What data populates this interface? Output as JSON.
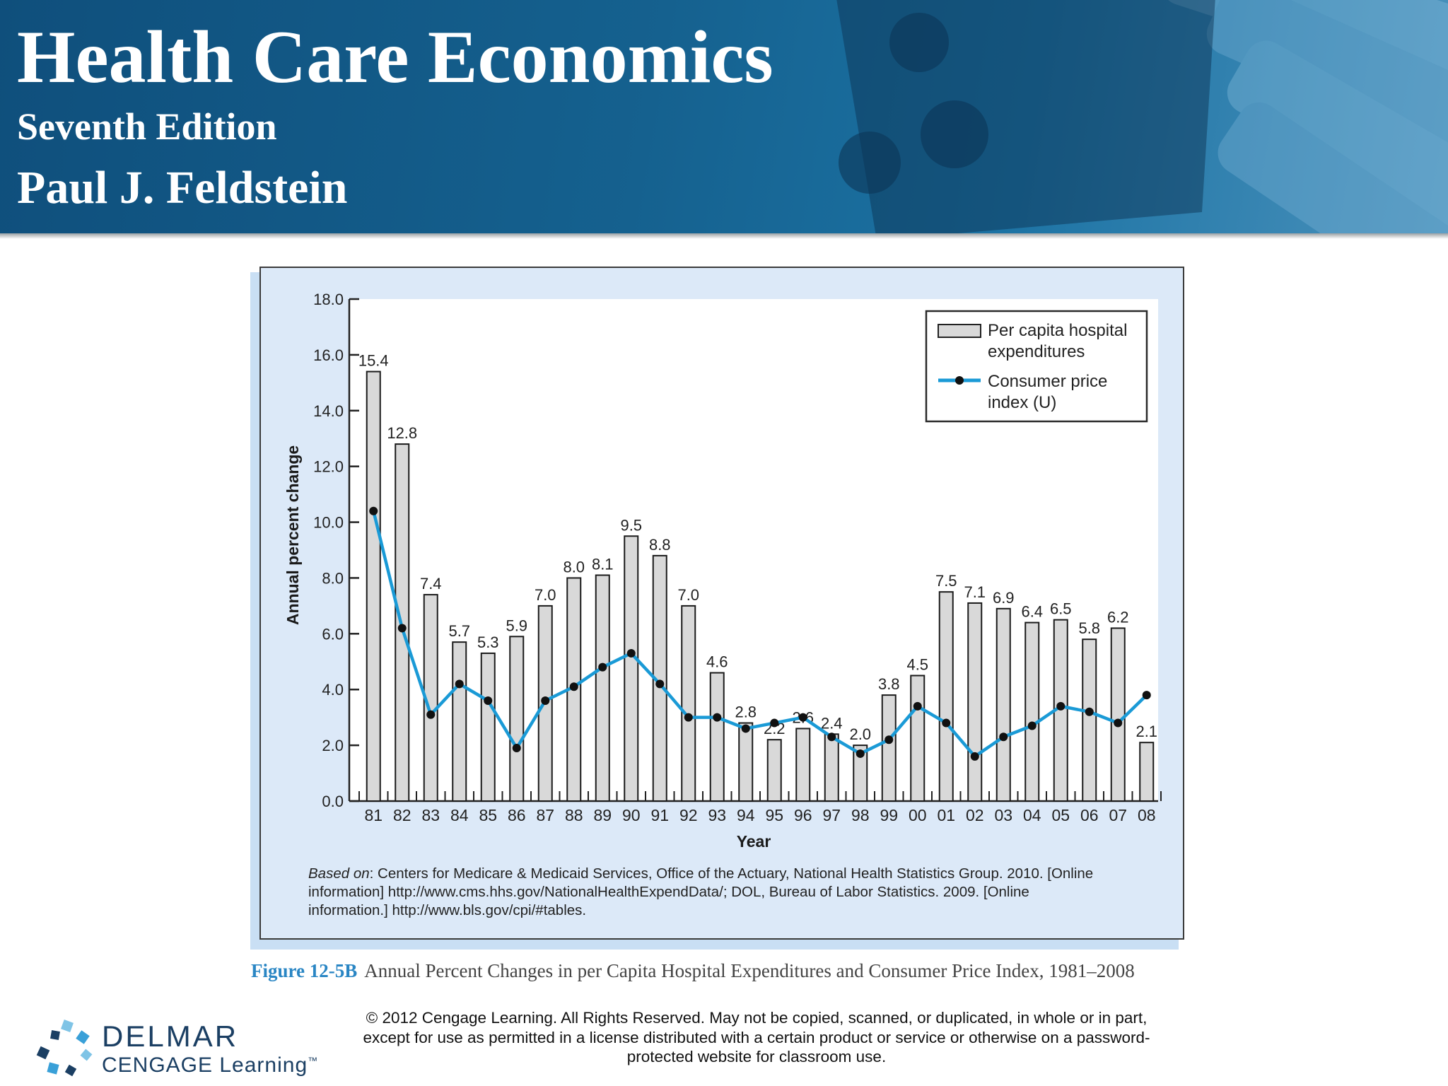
{
  "header": {
    "title": "Health Care Economics",
    "edition": "Seventh Edition",
    "author": "Paul J. Feldstein"
  },
  "colors": {
    "header_blue": "#15618f",
    "chart_panel": "#dce9f8",
    "bar_fill": "#d9d9d9",
    "cpi_line": "#1a9ad6",
    "figure_label": "#2a86c4"
  },
  "chart_data": {
    "type": "bar",
    "ylabel": "Annual percent change",
    "xlabel": "Year",
    "ylim": [
      0,
      18
    ],
    "yticks": [
      "0.0",
      "2.0",
      "4.0",
      "6.0",
      "8.0",
      "10.0",
      "12.0",
      "14.0",
      "16.0",
      "18.0"
    ],
    "categories": [
      "81",
      "82",
      "83",
      "84",
      "85",
      "86",
      "87",
      "88",
      "89",
      "90",
      "91",
      "92",
      "93",
      "94",
      "95",
      "96",
      "97",
      "98",
      "99",
      "00",
      "01",
      "02",
      "03",
      "04",
      "05",
      "06",
      "07",
      "08"
    ],
    "series": [
      {
        "name": "Per capita hospital expenditures",
        "type": "bar",
        "values": [
          15.4,
          12.8,
          7.4,
          5.7,
          5.3,
          5.9,
          7.0,
          8.0,
          8.1,
          9.5,
          8.8,
          7.0,
          4.6,
          2.8,
          2.2,
          2.6,
          2.4,
          2.0,
          3.8,
          4.5,
          7.5,
          7.1,
          6.9,
          6.4,
          6.5,
          5.8,
          6.2,
          2.1
        ],
        "labels": [
          "15.4",
          "12.8",
          "7.4",
          "5.7",
          "5.3",
          "5.9",
          "7.0",
          "8.0",
          "8.1",
          "9.5",
          "8.8",
          "7.0",
          "4.6",
          "2.8",
          "2.2",
          "2.6",
          "2.4",
          "2.0",
          "3.8",
          "4.5",
          "7.5",
          "7.1",
          "6.9",
          "6.4",
          "6.5",
          "5.8",
          "6.2",
          "2.1"
        ]
      },
      {
        "name": "Consumer price index (U)",
        "type": "line",
        "values": [
          10.4,
          6.2,
          3.1,
          4.2,
          3.6,
          1.9,
          3.6,
          4.1,
          4.8,
          5.3,
          4.2,
          3.0,
          3.0,
          2.6,
          2.8,
          3.0,
          2.3,
          1.7,
          2.2,
          3.4,
          2.8,
          1.6,
          2.3,
          2.7,
          3.4,
          3.2,
          2.8,
          3.8
        ]
      }
    ],
    "legend": {
      "position": "top-right",
      "bar_lines": [
        "Per capita hospital",
        "expenditures"
      ],
      "line_lines": [
        "Consumer price",
        "index (U)"
      ]
    },
    "source_label": "Based on",
    "source_lines": [
      ": Centers for Medicare & Medicaid Services, Office of the Actuary, National Health Statistics Group. 2010. [Online",
      "information] http://www.cms.hhs.gov/NationalHealthExpendData/; DOL, Bureau of Labor Statistics. 2009. [Online",
      "information.] http://www.bls.gov/cpi/#tables."
    ]
  },
  "caption": {
    "label": "Figure 12-5B",
    "text": "Annual Percent Changes in per Capita Hospital Expenditures and Consumer Price Index, 1981–2008"
  },
  "footer": {
    "copyright_lines": [
      "© 2012 Cengage Learning. All Rights Reserved. May not be copied, scanned, or duplicated, in whole or in part,",
      "except for use as permitted in a license distributed with a certain product or service or otherwise on a password-",
      "protected website for classroom use."
    ],
    "logo_top": "DELMAR",
    "logo_bottom": "CENGAGE Learning",
    "logo_tm": "™"
  }
}
